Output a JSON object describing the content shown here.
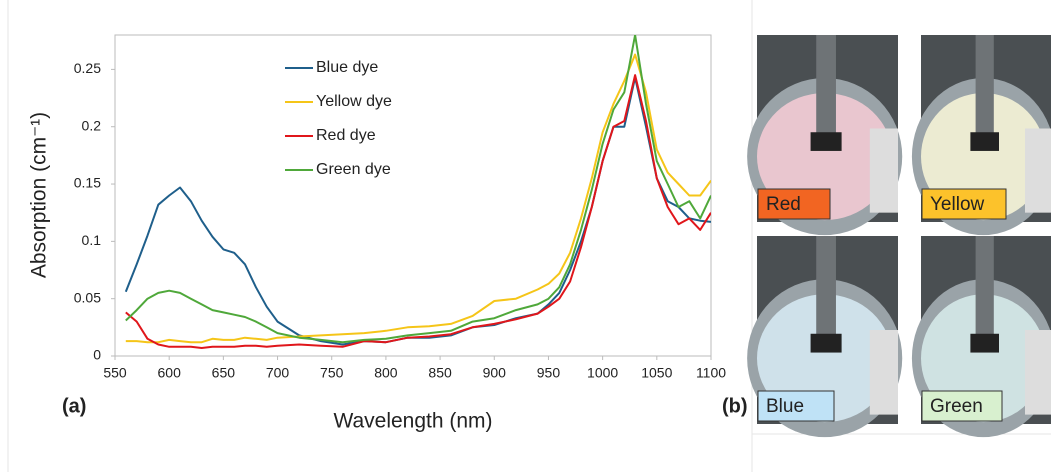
{
  "chart_data": {
    "type": "line",
    "xlabel": "Wavelength (nm)",
    "ylabel": "Absorption (cm⁻¹)",
    "xlim": [
      550,
      1100
    ],
    "xticks": [
      550,
      600,
      650,
      700,
      750,
      800,
      850,
      900,
      950,
      1000,
      1050,
      1100
    ],
    "ylim": [
      0,
      0.28
    ],
    "yticks": [
      0,
      0.05,
      0.1,
      0.15,
      0.2,
      0.25
    ],
    "legend": "upper-left",
    "x": [
      560,
      570,
      580,
      590,
      600,
      610,
      620,
      630,
      640,
      650,
      660,
      670,
      680,
      690,
      700,
      720,
      740,
      760,
      780,
      800,
      820,
      840,
      860,
      880,
      900,
      920,
      940,
      950,
      960,
      970,
      980,
      990,
      1000,
      1010,
      1020,
      1030,
      1040,
      1050,
      1060,
      1070,
      1080,
      1090,
      1100
    ],
    "series": [
      {
        "name": "Blue dye",
        "color": "#1f5f8b",
        "values": [
          0.056,
          0.08,
          0.105,
          0.132,
          0.14,
          0.147,
          0.135,
          0.118,
          0.104,
          0.093,
          0.09,
          0.08,
          0.06,
          0.043,
          0.03,
          0.018,
          0.013,
          0.01,
          0.013,
          0.012,
          0.016,
          0.016,
          0.018,
          0.025,
          0.027,
          0.033,
          0.037,
          0.045,
          0.055,
          0.075,
          0.1,
          0.13,
          0.17,
          0.2,
          0.2,
          0.243,
          0.2,
          0.155,
          0.135,
          0.13,
          0.12,
          0.118,
          0.117
        ]
      },
      {
        "name": "Yellow dye",
        "color": "#f5c518",
        "values": [
          0.013,
          0.013,
          0.012,
          0.012,
          0.014,
          0.013,
          0.012,
          0.012,
          0.015,
          0.014,
          0.014,
          0.016,
          0.015,
          0.014,
          0.016,
          0.017,
          0.018,
          0.019,
          0.02,
          0.022,
          0.025,
          0.026,
          0.028,
          0.035,
          0.048,
          0.05,
          0.058,
          0.063,
          0.072,
          0.09,
          0.12,
          0.155,
          0.195,
          0.22,
          0.24,
          0.263,
          0.23,
          0.18,
          0.16,
          0.15,
          0.14,
          0.14,
          0.153
        ]
      },
      {
        "name": "Red dye",
        "color": "#e0161b",
        "values": [
          0.038,
          0.03,
          0.015,
          0.01,
          0.008,
          0.008,
          0.008,
          0.007,
          0.008,
          0.008,
          0.008,
          0.009,
          0.009,
          0.008,
          0.009,
          0.01,
          0.009,
          0.008,
          0.013,
          0.012,
          0.016,
          0.017,
          0.019,
          0.025,
          0.028,
          0.032,
          0.037,
          0.043,
          0.05,
          0.065,
          0.095,
          0.13,
          0.17,
          0.2,
          0.205,
          0.245,
          0.205,
          0.155,
          0.13,
          0.115,
          0.12,
          0.11,
          0.125
        ]
      },
      {
        "name": "Green dye",
        "color": "#4fa83a",
        "values": [
          0.031,
          0.04,
          0.05,
          0.055,
          0.057,
          0.055,
          0.05,
          0.045,
          0.04,
          0.038,
          0.036,
          0.034,
          0.03,
          0.025,
          0.02,
          0.016,
          0.014,
          0.012,
          0.014,
          0.015,
          0.018,
          0.02,
          0.022,
          0.03,
          0.033,
          0.04,
          0.045,
          0.05,
          0.06,
          0.08,
          0.11,
          0.145,
          0.185,
          0.215,
          0.23,
          0.28,
          0.22,
          0.17,
          0.15,
          0.13,
          0.135,
          0.12,
          0.14
        ]
      }
    ]
  },
  "panel_labels": [
    "(a)",
    "(b)"
  ],
  "photos": [
    {
      "label": "Red",
      "color": "#f26522"
    },
    {
      "label": "Yellow",
      "color": "#fcc22b"
    },
    {
      "label": "Blue",
      "color": "#bfe2f6"
    },
    {
      "label": "Green",
      "color": "#d8f0cf"
    }
  ]
}
